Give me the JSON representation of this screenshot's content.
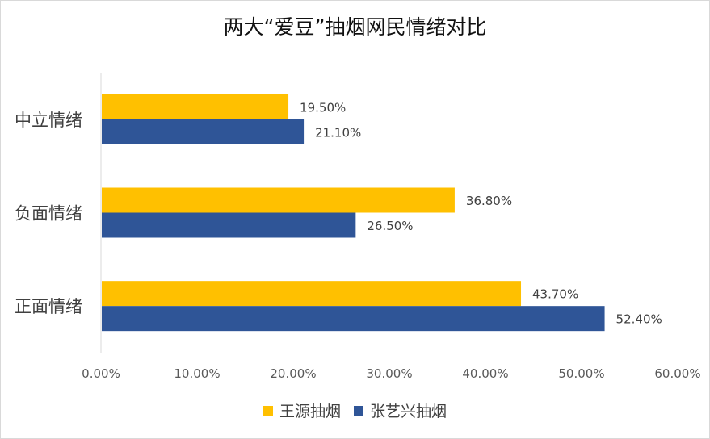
{
  "chart_data": {
    "type": "bar",
    "orientation": "horizontal",
    "title": "两大“爱豆”抽烟网民情绪对比",
    "categories": [
      "中立情绪",
      "负面情绪",
      "正面情绪"
    ],
    "series": [
      {
        "name": "王源抽烟",
        "color": "#FFC000",
        "values": [
          19.5,
          36.8,
          43.7
        ],
        "labels": [
          "19.50%",
          "36.80%",
          "43.70%"
        ]
      },
      {
        "name": "张艺兴抽烟",
        "color": "#2F5597",
        "values": [
          21.1,
          26.5,
          52.4
        ],
        "labels": [
          "21.10%",
          "26.50%",
          "52.40%"
        ]
      }
    ],
    "xlim": [
      0,
      60
    ],
    "xticks": [
      "0.00%",
      "10.00%",
      "20.00%",
      "30.00%",
      "40.00%",
      "50.00%",
      "60.00%"
    ],
    "grid": false,
    "legend_position": "bottom"
  }
}
